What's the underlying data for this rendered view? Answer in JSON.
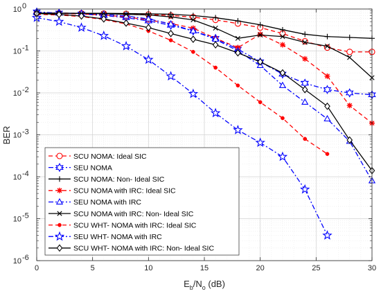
{
  "chart_data": {
    "type": "line",
    "xlabel": "E_b/N_o (dB)",
    "xlabel_parts": {
      "E": "E",
      "b": "b",
      "slash": "/N",
      "o": "o",
      "unit": " (dB)"
    },
    "ylabel": "BER",
    "xlim": [
      0,
      30
    ],
    "ylim": [
      1e-06,
      1
    ],
    "yscale": "log",
    "grid": true,
    "legend_position": "bottom-left",
    "x_ticks": [
      "0",
      "5",
      "10",
      "15",
      "20",
      "25",
      "30"
    ],
    "y_ticks": [
      {
        "base": "10",
        "exp": "0"
      },
      {
        "base": "10",
        "exp": "-1"
      },
      {
        "base": "10",
        "exp": "-2"
      },
      {
        "base": "10",
        "exp": "-3"
      },
      {
        "base": "10",
        "exp": "-4"
      },
      {
        "base": "10",
        "exp": "-5"
      },
      {
        "base": "10",
        "exp": "-6"
      }
    ],
    "series": [
      {
        "name": "SCU NOMA: Ideal SIC",
        "color": "#ff0000",
        "dash": "dashed",
        "marker": "circle-open",
        "x": [
          0,
          2,
          4,
          6,
          8,
          10,
          12,
          14,
          16,
          18,
          20,
          22,
          24,
          26,
          28,
          30
        ],
        "y": [
          0.8,
          0.8,
          0.79,
          0.78,
          0.77,
          0.74,
          0.7,
          0.64,
          0.55,
          0.45,
          0.36,
          0.26,
          0.17,
          0.12,
          0.095,
          0.095
        ]
      },
      {
        "name": "SEU NOMA",
        "color": "#0000ff",
        "dash": "dashdot",
        "marker": "hexagram-open",
        "x": [
          0,
          2,
          4,
          6,
          8,
          10,
          12,
          14,
          16,
          18,
          20,
          22,
          24,
          26,
          28,
          30
        ],
        "y": [
          0.85,
          0.8,
          0.76,
          0.7,
          0.62,
          0.52,
          0.41,
          0.3,
          0.2,
          0.11,
          0.055,
          0.028,
          0.017,
          0.012,
          0.01,
          0.009
        ]
      },
      {
        "name": "SCU NOMA: Non- Ideal SIC",
        "color": "#000000",
        "dash": "solid",
        "marker": "plus",
        "x": [
          0,
          2,
          4,
          6,
          8,
          10,
          12,
          14,
          16,
          18,
          20,
          22,
          24,
          26,
          28,
          30
        ],
        "y": [
          0.8,
          0.8,
          0.79,
          0.79,
          0.78,
          0.77,
          0.75,
          0.7,
          0.62,
          0.52,
          0.42,
          0.32,
          0.25,
          0.22,
          0.21,
          0.2
        ]
      },
      {
        "name": "SCU NOMA with IRC: Ideal SIC",
        "color": "#ff0000",
        "dash": "dashed",
        "marker": "asterisk",
        "x": [
          0,
          2,
          4,
          6,
          8,
          10,
          12,
          14,
          16,
          18,
          20,
          22,
          24,
          26,
          28,
          30
        ],
        "y": [
          0.8,
          0.78,
          0.76,
          0.72,
          0.65,
          0.55,
          0.45,
          0.35,
          0.2,
          0.12,
          0.25,
          0.14,
          0.065,
          0.025,
          0.005,
          0.0019
        ]
      },
      {
        "name": "SEU NOMA with IRC",
        "color": "#0000ff",
        "dash": "dashdot",
        "marker": "triangle-open",
        "x": [
          0,
          2,
          4,
          6,
          8,
          10,
          12,
          14,
          16,
          18,
          20,
          22,
          24,
          26,
          28,
          30
        ],
        "y": [
          0.82,
          0.8,
          0.78,
          0.74,
          0.68,
          0.58,
          0.44,
          0.3,
          0.19,
          0.1,
          0.045,
          0.015,
          0.006,
          0.0024,
          0.0007,
          8e-05
        ]
      },
      {
        "name": "SCU NOMA with IRC: Non- Ideal SIC",
        "color": "#000000",
        "dash": "solid",
        "marker": "cross",
        "x": [
          0,
          2,
          4,
          6,
          8,
          10,
          12,
          14,
          16,
          18,
          20,
          22,
          24,
          26,
          28,
          30
        ],
        "y": [
          0.8,
          0.79,
          0.78,
          0.77,
          0.75,
          0.72,
          0.65,
          0.55,
          0.35,
          0.2,
          0.24,
          0.22,
          0.16,
          0.13,
          0.07,
          0.023
        ]
      },
      {
        "name": "SCU WHT- NOMA with IRC: Ideal SIC",
        "color": "#ff0000",
        "dash": "dashed",
        "marker": "dot",
        "x": [
          0,
          2,
          4,
          6,
          8,
          10,
          12,
          14,
          16,
          18,
          20,
          22,
          24,
          26
        ],
        "y": [
          0.75,
          0.72,
          0.66,
          0.56,
          0.44,
          0.3,
          0.18,
          0.095,
          0.04,
          0.015,
          0.006,
          0.0025,
          0.0008,
          0.00035
        ]
      },
      {
        "name": "SEU WHT- NOMA with IRC",
        "color": "#0000ff",
        "dash": "dashdot",
        "marker": "pentagram-open",
        "x": [
          0,
          2,
          4,
          6,
          8,
          10,
          12,
          14,
          16,
          18,
          20,
          22,
          24,
          26
        ],
        "y": [
          0.62,
          0.5,
          0.36,
          0.23,
          0.13,
          0.062,
          0.025,
          0.0095,
          0.0033,
          0.0013,
          0.00065,
          0.0003,
          5e-05,
          4e-06
        ]
      },
      {
        "name": "SCU WHT- NOMA with IRC: Non- Ideal SIC",
        "color": "#000000",
        "dash": "solid",
        "marker": "diamond-open",
        "x": [
          0,
          2,
          4,
          6,
          8,
          10,
          12,
          14,
          16,
          18,
          20,
          22,
          24,
          26,
          28,
          30
        ],
        "y": [
          0.78,
          0.74,
          0.68,
          0.58,
          0.46,
          0.36,
          0.26,
          0.19,
          0.14,
          0.09,
          0.055,
          0.03,
          0.012,
          0.0048,
          0.00075,
          0.00014
        ]
      }
    ]
  }
}
